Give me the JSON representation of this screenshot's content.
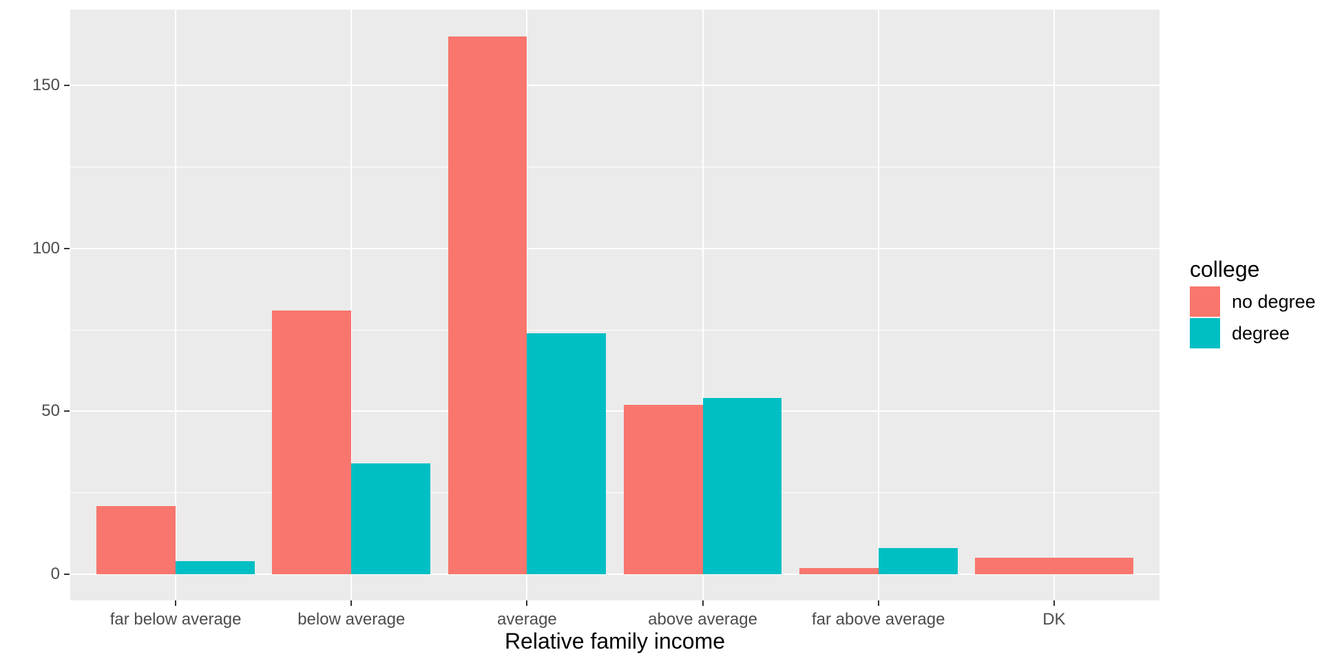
{
  "chart_data": {
    "type": "bar",
    "bar_mode": "dodge",
    "title": "",
    "xlabel": "Relative family income",
    "ylabel": "",
    "categories": [
      "far below average",
      "below average",
      "average",
      "above average",
      "far above average",
      "DK"
    ],
    "series": [
      {
        "name": "no degree",
        "color": "#F8766D",
        "values": [
          21,
          81,
          165,
          52,
          2,
          5
        ]
      },
      {
        "name": "degree",
        "color": "#00BFC4",
        "values": [
          4,
          34,
          74,
          54,
          8,
          null
        ]
      }
    ],
    "ylim": [
      0,
      173
    ],
    "yticks": [
      0,
      50,
      100,
      150
    ],
    "yticks_minor": [
      25,
      75,
      125
    ],
    "grid": "on",
    "legend_position": "right",
    "legend_title": "college"
  },
  "style": {
    "background": "#FFFFFF",
    "panel_bg": "#EBEBEB",
    "grid_color": "#FFFFFF",
    "tick_mark_color": "#333333",
    "tick_label_color": "#4D4D4D",
    "axis_title_color": "#000000",
    "legend_text_color": "#000000"
  }
}
